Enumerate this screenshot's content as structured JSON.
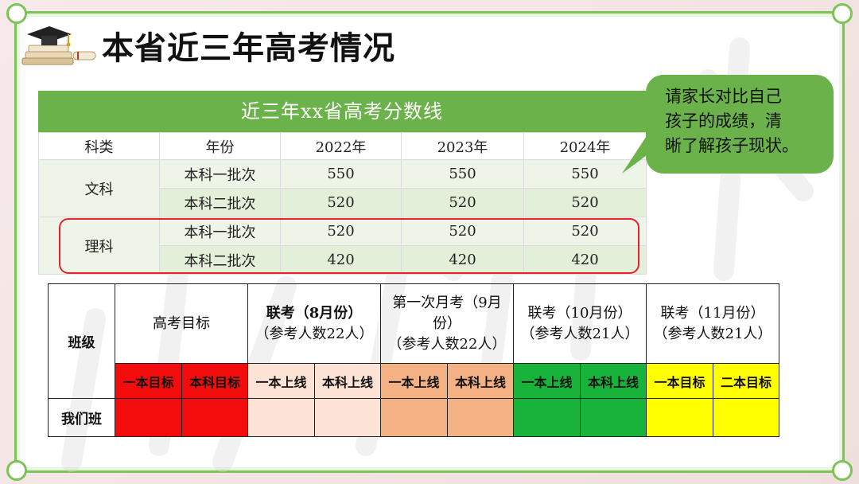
{
  "title": "本省近三年高考情况",
  "score_table": {
    "caption": "近三年xx省高考分数线",
    "headers": [
      "科类",
      "年份",
      "2022年",
      "2023年",
      "2024年"
    ],
    "groups": [
      {
        "subject": "文科",
        "rows": [
          {
            "batch": "本科一批次",
            "values": [
              "550",
              "550",
              "550"
            ]
          },
          {
            "batch": "本科二批次",
            "values": [
              "520",
              "520",
              "520"
            ]
          }
        ]
      },
      {
        "subject": "理科",
        "rows": [
          {
            "batch": "本科一批次",
            "values": [
              "520",
              "520",
              "520"
            ]
          },
          {
            "batch": "本科二批次",
            "values": [
              "420",
              "420",
              "420"
            ]
          }
        ]
      }
    ]
  },
  "bubble": {
    "line1": "请家长对比自己",
    "line2": "孩子的成绩，清",
    "line3": "晰了解孩子现状。"
  },
  "plan_table": {
    "class_label": "班级",
    "our_class": "我们班",
    "groups": [
      {
        "title_line1": "高考目标",
        "title_line2": "",
        "title_line3": "",
        "sub": [
          "一本目标",
          "本科目标"
        ]
      },
      {
        "title_line1": "联考（8月份）",
        "title_line2": "（参考人数22人）",
        "title_line3": "",
        "sub": [
          "一本上线",
          "本科上线"
        ]
      },
      {
        "title_line1": "第一次月考（9月",
        "title_line2": "份）",
        "title_line3": "（参考人数22人）",
        "sub": [
          "一本上线",
          "本科上线"
        ]
      },
      {
        "title_line1": "联考（10月份）",
        "title_line2": "（参考人数21人）",
        "title_line3": "",
        "sub": [
          "一本上线",
          "本科上线"
        ]
      },
      {
        "title_line1": "联考（11月份）",
        "title_line2": "（参考人数21人）",
        "title_line3": "",
        "sub": [
          "一本目标",
          "二本目标"
        ]
      }
    ]
  },
  "colors": {
    "accent_green": "#6bb24a",
    "target_red": "#f20c0c",
    "aug_peach": "#fde3d6",
    "sep_peach": "#f4b183",
    "oct_green": "#17b33b",
    "nov_yellow": "#ffff00",
    "highlight_red": "#e8202a"
  },
  "icons": {
    "title_icon": "graduation-cap-books-icon",
    "watermark": "watermark-text"
  }
}
